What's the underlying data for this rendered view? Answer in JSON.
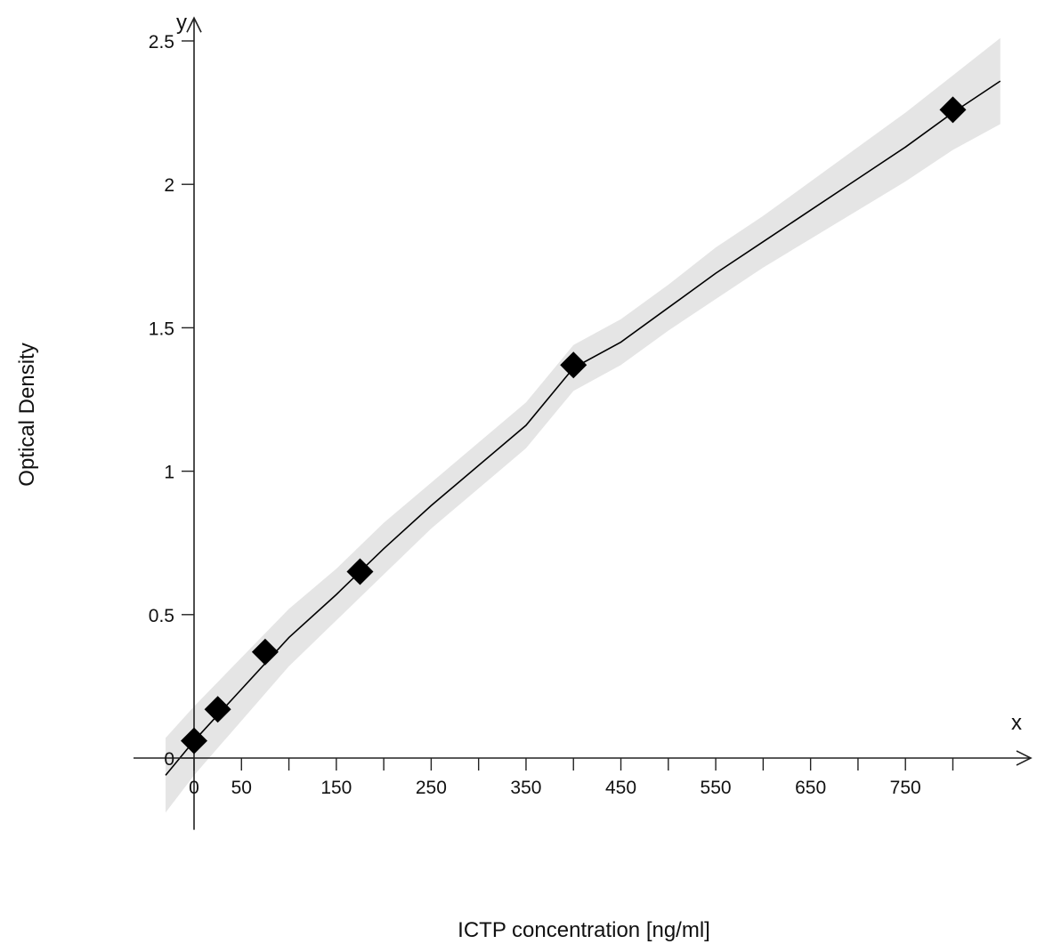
{
  "chart_data": {
    "type": "scatter",
    "title": "",
    "xlabel": "ICTP concentration [ng/ml]",
    "ylabel": "Optical Density",
    "x_axis_letter": "x",
    "y_axis_letter": "y",
    "xlim": [
      -30,
      890
    ],
    "ylim": [
      -0.2,
      2.6
    ],
    "x_ticks": [
      0,
      50,
      150,
      250,
      350,
      450,
      550,
      650,
      750
    ],
    "x_minor_ticks": [
      100,
      200,
      300,
      400,
      500,
      600,
      700,
      800
    ],
    "y_ticks": [
      0,
      0.5,
      1,
      1.5,
      2,
      2.5
    ],
    "y_tick_labels": [
      "0",
      "0.5",
      "1",
      "1.5",
      "2",
      "2.5"
    ],
    "grid": false,
    "series": [
      {
        "x": [
          0,
          25,
          75,
          175,
          400,
          800
        ],
        "y": [
          0.06,
          0.17,
          0.37,
          0.65,
          1.37,
          2.26
        ]
      }
    ],
    "fit_curve": {
      "x": [
        -30,
        0,
        50,
        100,
        150,
        200,
        250,
        300,
        350,
        400,
        450,
        500,
        550,
        600,
        650,
        700,
        750,
        800,
        850
      ],
      "y": [
        -0.06,
        0.06,
        0.24,
        0.42,
        0.57,
        0.73,
        0.88,
        1.02,
        1.16,
        1.36,
        1.45,
        1.57,
        1.69,
        1.8,
        1.91,
        2.02,
        2.13,
        2.25,
        2.36
      ]
    },
    "confidence_band_halfwidth": [
      0.13,
      0.12,
      0.11,
      0.1,
      0.09,
      0.09,
      0.08,
      0.08,
      0.08,
      0.08,
      0.08,
      0.08,
      0.09,
      0.09,
      0.1,
      0.11,
      0.12,
      0.13,
      0.15
    ],
    "colors": {
      "marker": "#000000",
      "curve": "#000000",
      "band": "#e5e5e5",
      "axis": "#222222"
    }
  }
}
